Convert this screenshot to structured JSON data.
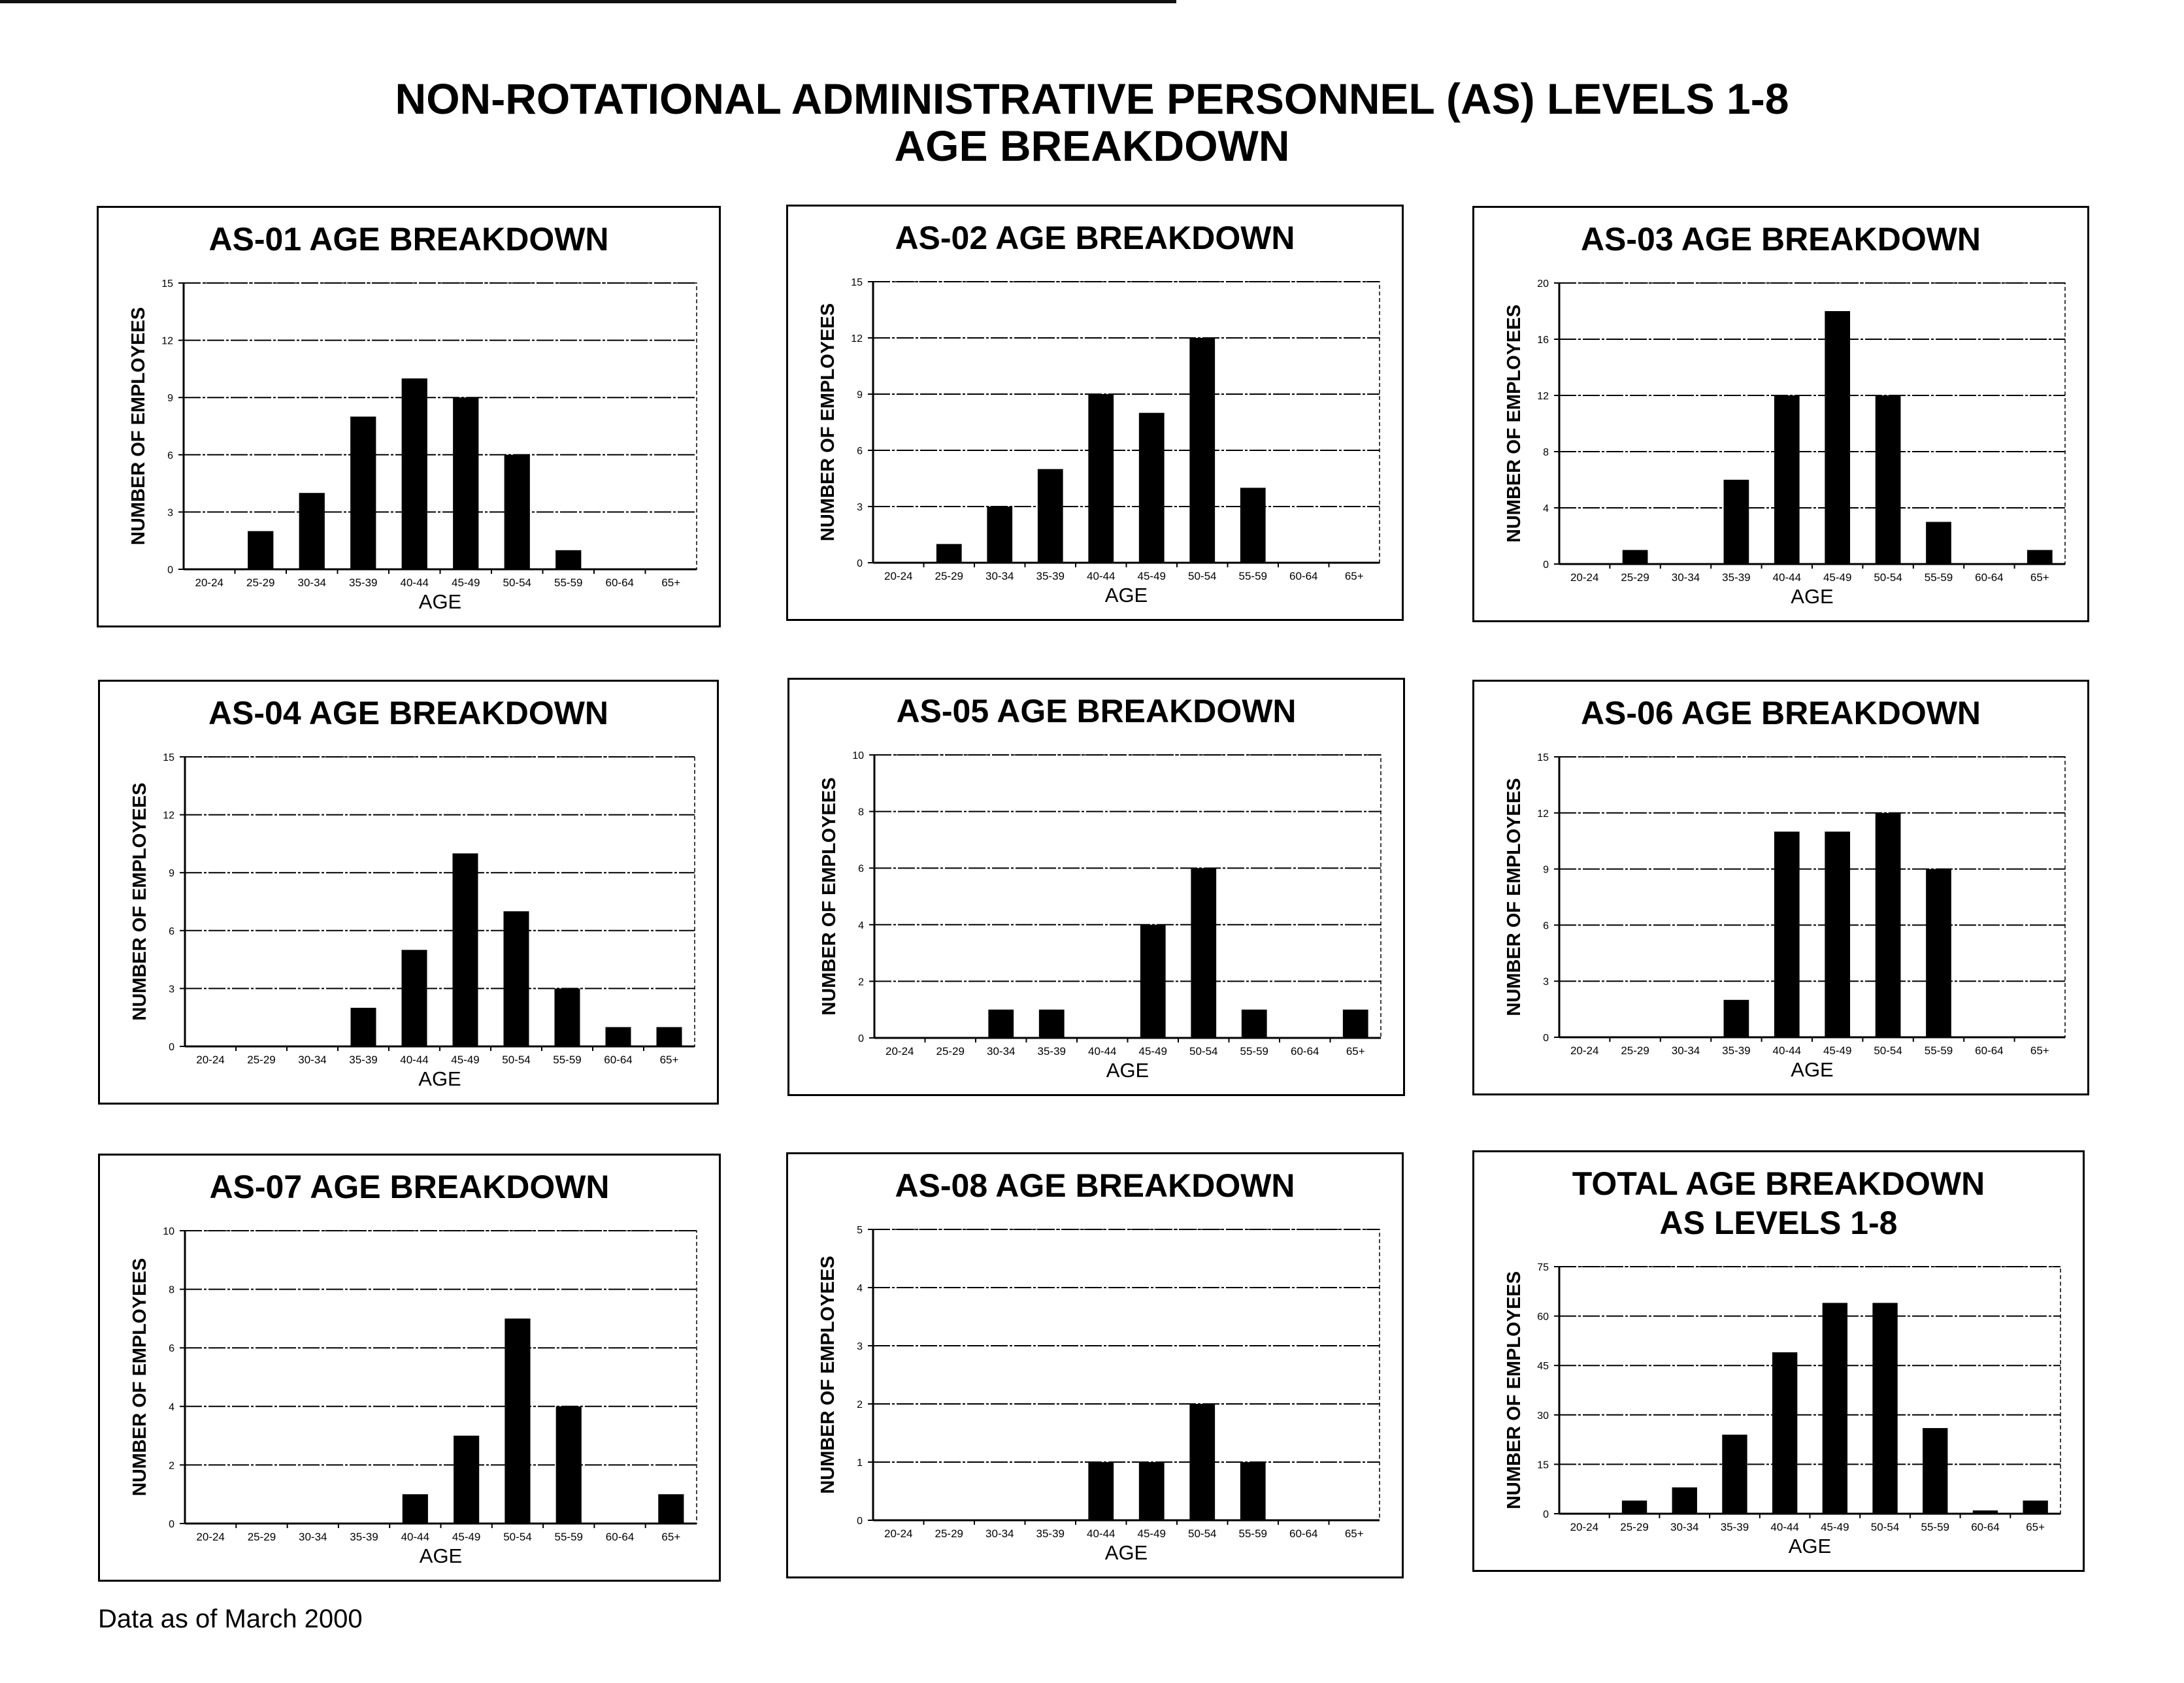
{
  "page": {
    "title_line1": "NON-ROTATIONAL ADMINISTRATIVE PERSONNEL (AS) LEVELS 1-8",
    "title_line2": "AGE BREAKDOWN",
    "footer": "Data as of March 2000"
  },
  "chart_data": [
    {
      "type": "bar",
      "title": "AS-01 AGE BREAKDOWN",
      "xlabel": "AGE",
      "ylabel": "NUMBER OF EMPLOYEES",
      "categories": [
        "20-24",
        "25-29",
        "30-34",
        "35-39",
        "40-44",
        "45-49",
        "50-54",
        "55-59",
        "60-64",
        "65+"
      ],
      "values": [
        0,
        2,
        4,
        8,
        10,
        9,
        6,
        1,
        0,
        0
      ],
      "ylim": [
        0,
        15
      ],
      "yticks": [
        0,
        3,
        6,
        9,
        12,
        15
      ],
      "grid": true
    },
    {
      "type": "bar",
      "title": "AS-02 AGE BREAKDOWN",
      "xlabel": "AGE",
      "ylabel": "NUMBER OF EMPLOYEES",
      "categories": [
        "20-24",
        "25-29",
        "30-34",
        "35-39",
        "40-44",
        "45-49",
        "50-54",
        "55-59",
        "60-64",
        "65+"
      ],
      "values": [
        0,
        1,
        3,
        5,
        9,
        8,
        12,
        4,
        0,
        0
      ],
      "ylim": [
        0,
        15
      ],
      "yticks": [
        0,
        3,
        6,
        9,
        12,
        15
      ],
      "grid": true
    },
    {
      "type": "bar",
      "title": "AS-03 AGE BREAKDOWN",
      "xlabel": "AGE",
      "ylabel": "NUMBER OF EMPLOYEES",
      "categories": [
        "20-24",
        "25-29",
        "30-34",
        "35-39",
        "40-44",
        "45-49",
        "50-54",
        "55-59",
        "60-64",
        "65+"
      ],
      "values": [
        0,
        1,
        0,
        6,
        12,
        18,
        12,
        3,
        0,
        1
      ],
      "ylim": [
        0,
        20
      ],
      "yticks": [
        0,
        4,
        8,
        12,
        16,
        20
      ],
      "grid": true
    },
    {
      "type": "bar",
      "title": "AS-04 AGE BREAKDOWN",
      "xlabel": "AGE",
      "ylabel": "NUMBER OF EMPLOYEES",
      "categories": [
        "20-24",
        "25-29",
        "30-34",
        "35-39",
        "40-44",
        "45-49",
        "50-54",
        "55-59",
        "60-64",
        "65+"
      ],
      "values": [
        0,
        0,
        0,
        2,
        5,
        10,
        7,
        3,
        1,
        1
      ],
      "ylim": [
        0,
        15
      ],
      "yticks": [
        0,
        3,
        6,
        9,
        12,
        15
      ],
      "grid": true
    },
    {
      "type": "bar",
      "title": "AS-05 AGE BREAKDOWN",
      "xlabel": "AGE",
      "ylabel": "NUMBER OF EMPLOYEES",
      "categories": [
        "20-24",
        "25-29",
        "30-34",
        "35-39",
        "40-44",
        "45-49",
        "50-54",
        "55-59",
        "60-64",
        "65+"
      ],
      "values": [
        0,
        0,
        1,
        1,
        0,
        4,
        6,
        1,
        0,
        1
      ],
      "ylim": [
        0,
        10
      ],
      "yticks": [
        0,
        2,
        4,
        6,
        8,
        10
      ],
      "grid": true
    },
    {
      "type": "bar",
      "title": "AS-06 AGE BREAKDOWN",
      "xlabel": "AGE",
      "ylabel": "NUMBER OF EMPLOYEES",
      "categories": [
        "20-24",
        "25-29",
        "30-34",
        "35-39",
        "40-44",
        "45-49",
        "50-54",
        "55-59",
        "60-64",
        "65+"
      ],
      "values": [
        0,
        0,
        0,
        2,
        11,
        11,
        12,
        9,
        0,
        0
      ],
      "ylim": [
        0,
        15
      ],
      "yticks": [
        0,
        3,
        6,
        9,
        12,
        15
      ],
      "grid": true
    },
    {
      "type": "bar",
      "title": "AS-07 AGE BREAKDOWN",
      "xlabel": "AGE",
      "ylabel": "NUMBER OF EMPLOYEES",
      "categories": [
        "20-24",
        "25-29",
        "30-34",
        "35-39",
        "40-44",
        "45-49",
        "50-54",
        "55-59",
        "60-64",
        "65+"
      ],
      "values": [
        0,
        0,
        0,
        0,
        1,
        3,
        7,
        4,
        0,
        1
      ],
      "ylim": [
        0,
        10
      ],
      "yticks": [
        0,
        2,
        4,
        6,
        8,
        10
      ],
      "grid": true
    },
    {
      "type": "bar",
      "title": "AS-08 AGE BREAKDOWN",
      "xlabel": "AGE",
      "ylabel": "NUMBER OF EMPLOYEES",
      "categories": [
        "20-24",
        "25-29",
        "30-34",
        "35-39",
        "40-44",
        "45-49",
        "50-54",
        "55-59",
        "60-64",
        "65+"
      ],
      "values": [
        0,
        0,
        0,
        0,
        1,
        1,
        2,
        1,
        0,
        0
      ],
      "ylim": [
        0,
        5
      ],
      "yticks": [
        0,
        1,
        2,
        3,
        4,
        5
      ],
      "grid": true
    },
    {
      "type": "bar",
      "title": "TOTAL AGE BREAKDOWN",
      "subtitle": "AS LEVELS 1-8",
      "xlabel": "AGE",
      "ylabel": "NUMBER OF EMPLOYEES",
      "categories": [
        "20-24",
        "25-29",
        "30-34",
        "35-39",
        "40-44",
        "45-49",
        "50-54",
        "55-59",
        "60-64",
        "65+"
      ],
      "values": [
        0,
        4,
        8,
        24,
        49,
        64,
        64,
        26,
        1,
        4
      ],
      "ylim": [
        0,
        75
      ],
      "yticks": [
        0,
        15,
        30,
        45,
        60,
        75
      ],
      "grid": true
    }
  ]
}
